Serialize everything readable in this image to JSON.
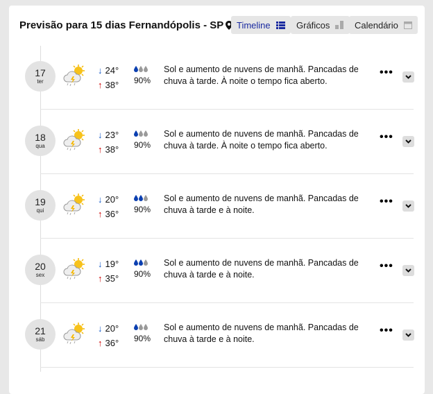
{
  "header": {
    "title": "Previsão para 15 dias Fernandópolis - SP"
  },
  "tabs": [
    {
      "label": "Timeline",
      "active": true
    },
    {
      "label": "Gráficos"
    },
    {
      "label": "Calendário"
    }
  ],
  "colors": {
    "accent": "#1a2aa0",
    "min_temp": "#1359c7",
    "max_temp": "#cc0000",
    "drop_active": "#0b3fb0",
    "drop_inactive": "#9a9a9a"
  },
  "days": [
    {
      "day": "17",
      "weekday": "ter",
      "min": "24°",
      "max": "38°",
      "rain_level": 1,
      "rain_pct": "90%",
      "text": "Sol e aumento de nuvens de manhã. Pancadas de chuva à tarde. À noite o tempo fica aberto.",
      "icon": "sun-cloud-storm-icon"
    },
    {
      "day": "18",
      "weekday": "qua",
      "min": "23°",
      "max": "38°",
      "rain_level": 1,
      "rain_pct": "90%",
      "text": "Sol e aumento de nuvens de manhã. Pancadas de chuva à tarde. À noite o tempo fica aberto.",
      "icon": "sun-cloud-storm-icon"
    },
    {
      "day": "19",
      "weekday": "qui",
      "min": "20°",
      "max": "36°",
      "rain_level": 2,
      "rain_pct": "90%",
      "text": "Sol e aumento de nuvens de manhã. Pancadas de chuva à tarde e à noite.",
      "icon": "sun-cloud-storm-icon"
    },
    {
      "day": "20",
      "weekday": "sex",
      "min": "19°",
      "max": "35°",
      "rain_level": 2,
      "rain_pct": "90%",
      "text": "Sol e aumento de nuvens de manhã. Pancadas de chuva à tarde e à noite.",
      "icon": "sun-cloud-storm-icon"
    },
    {
      "day": "21",
      "weekday": "sáb",
      "min": "20°",
      "max": "36°",
      "rain_level": 1,
      "rain_pct": "90%",
      "text": "Sol e aumento de nuvens de manhã. Pancadas de chuva à tarde e à noite.",
      "icon": "sun-cloud-storm-icon"
    }
  ]
}
